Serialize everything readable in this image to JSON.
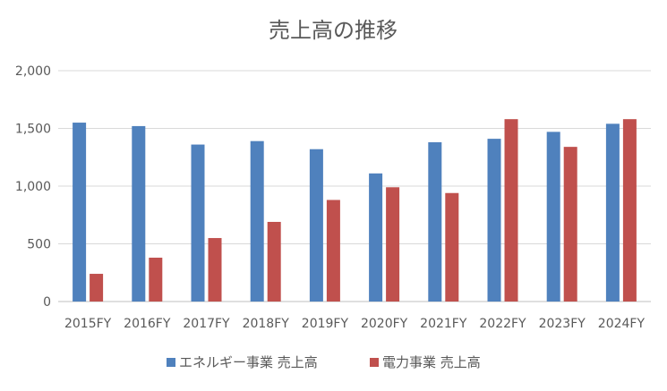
{
  "chart_data": {
    "type": "bar",
    "title": "売上高の推移",
    "xlabel": "",
    "ylabel": "",
    "ylim": [
      0,
      2000
    ],
    "yticks": [
      0,
      500,
      1000,
      1500,
      2000
    ],
    "ytick_labels": [
      "0",
      "500",
      "1,000",
      "1,500",
      "2,000"
    ],
    "grid": true,
    "legend_position": "bottom",
    "categories": [
      "2015FY",
      "2016FY",
      "2017FY",
      "2018FY",
      "2019FY",
      "2020FY",
      "2021FY",
      "2022FY",
      "2023FY",
      "2024FY"
    ],
    "series": [
      {
        "name": "エネルギー事業 売上高",
        "color": "#4f81bd",
        "values": [
          1550,
          1520,
          1360,
          1390,
          1320,
          1110,
          1380,
          1410,
          1470,
          1540
        ]
      },
      {
        "name": "電力事業 売上高",
        "color": "#c0504d",
        "values": [
          240,
          380,
          550,
          690,
          880,
          990,
          940,
          1580,
          1340,
          1580
        ]
      }
    ]
  }
}
